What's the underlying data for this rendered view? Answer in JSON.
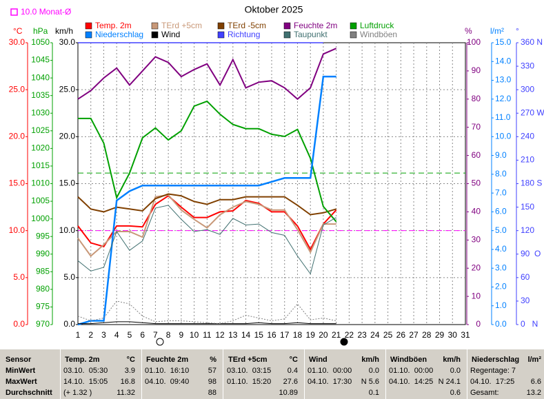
{
  "chart_data": {
    "type": "line",
    "title": "Oktober 2025",
    "x": [
      1,
      2,
      3,
      4,
      5,
      6,
      7,
      8,
      9,
      10,
      11,
      12,
      13,
      14,
      15,
      16,
      17,
      18,
      19,
      20,
      21,
      22,
      23,
      24,
      25,
      26,
      27,
      28,
      29,
      30,
      31
    ],
    "xlim": [
      1,
      31
    ],
    "xgrid": true,
    "grid_axis": 0,
    "axes": [
      {
        "title": "°C",
        "color": "#ff0000",
        "side": "left",
        "lim": [
          0,
          30
        ],
        "ticks": [
          {
            "value": 0,
            "label": "0.0"
          },
          {
            "value": 5,
            "label": "5.0"
          },
          {
            "value": 10,
            "label": "10.0"
          },
          {
            "value": 15,
            "label": "15.0"
          },
          {
            "value": 20,
            "label": "20.0"
          },
          {
            "value": 25,
            "label": "25.0"
          },
          {
            "value": 30,
            "label": "30.0"
          }
        ]
      },
      {
        "title": "hPa",
        "color": "#00a000",
        "side": "left",
        "lim": [
          970,
          1050
        ],
        "ticks": [
          970,
          975,
          980,
          985,
          990,
          995,
          1000,
          1005,
          1010,
          1015,
          1020,
          1025,
          1030,
          1035,
          1040,
          1045,
          1050
        ]
      },
      {
        "title": "km/h",
        "color": "#000000",
        "side": "left",
        "lim": [
          0,
          30
        ],
        "ticks": [
          {
            "value": 0,
            "label": "0.0"
          },
          {
            "value": 5,
            "label": "5.0"
          },
          {
            "value": 10,
            "label": "10.0"
          },
          {
            "value": 15,
            "label": "15.0"
          },
          {
            "value": 20,
            "label": "20.0"
          },
          {
            "value": 25,
            "label": "25.0"
          },
          {
            "value": 30,
            "label": "30.0"
          }
        ]
      },
      {
        "title": "%",
        "color": "#800080",
        "side": "right",
        "lim": [
          0,
          100
        ],
        "ticks": [
          0,
          10,
          20,
          30,
          40,
          50,
          60,
          70,
          80,
          90,
          100
        ]
      },
      {
        "title": "l/m²",
        "color": "#0080ff",
        "side": "right",
        "lim": [
          0,
          15
        ],
        "ticks": [
          {
            "value": 0,
            "label": "0.0"
          },
          {
            "value": 1,
            "label": "1.0"
          },
          {
            "value": 2,
            "label": "2.0"
          },
          {
            "value": 3,
            "label": "3.0"
          },
          {
            "value": 4,
            "label": "4.0"
          },
          {
            "value": 5,
            "label": "5.0"
          },
          {
            "value": 6,
            "label": "6.0"
          },
          {
            "value": 7,
            "label": "7.0"
          },
          {
            "value": 8,
            "label": "8.0"
          },
          {
            "value": 9,
            "label": "9.0"
          },
          {
            "value": 10,
            "label": "10.0"
          },
          {
            "value": 11,
            "label": "11.0"
          },
          {
            "value": 12,
            "label": "12.0"
          },
          {
            "value": 13,
            "label": "13.0"
          },
          {
            "value": 14,
            "label": "14.0"
          },
          {
            "value": 15,
            "label": "15.0"
          }
        ]
      },
      {
        "title": "°",
        "color": "#4040ff",
        "side": "right",
        "lim": [
          0,
          360
        ],
        "ticks": [
          {
            "value": 0,
            "label": "0   N"
          },
          30,
          60,
          {
            "value": 90,
            "label": "90  O"
          },
          120,
          150,
          {
            "value": 180,
            "label": "180 S"
          },
          210,
          240,
          {
            "value": 270,
            "label": "270 W"
          },
          300,
          330,
          {
            "value": 360,
            "label": "360 N"
          }
        ]
      }
    ],
    "reference_lines": [
      {
        "axis": 0,
        "value": 10,
        "color": "#ff00ff",
        "label": "10.0 Monat-Ø"
      },
      {
        "axis": 1,
        "value": 1013,
        "color": "#00a000"
      }
    ],
    "series": [
      {
        "name": "Temp. 2m",
        "color": "#ff0000",
        "axis": 0,
        "width": 2,
        "values": [
          10.5,
          8.7,
          8.3,
          10.5,
          10.5,
          10.4,
          12.8,
          13.7,
          12.5,
          11.4,
          11.4,
          12.0,
          12.1,
          13.2,
          12.9,
          12.0,
          12.0,
          10.5,
          8.0,
          10.7,
          12.2,
          null,
          null,
          null,
          null,
          null,
          null,
          null,
          null,
          null,
          null
        ]
      },
      {
        "name": "TErd +5cm",
        "color": "#c89878",
        "axis": 0,
        "width": 2,
        "values": [
          9.2,
          7.3,
          8.5,
          9.9,
          9.9,
          9.3,
          13.6,
          13.8,
          12.2,
          11.2,
          10.3,
          11.7,
          12.5,
          13.1,
          12.8,
          12.2,
          12.2,
          10.1,
          7.7,
          10.7,
          10.7,
          null,
          null,
          null,
          null,
          null,
          null,
          null,
          null,
          null,
          null
        ]
      },
      {
        "name": "TErd -5cm",
        "color": "#804000",
        "axis": 0,
        "width": 2,
        "values": [
          13.6,
          12.3,
          12.0,
          12.5,
          12.3,
          12.1,
          13.4,
          13.9,
          13.7,
          13.1,
          12.8,
          13.3,
          13.3,
          13.6,
          13.6,
          13.6,
          13.6,
          12.7,
          11.7,
          11.9,
          12.3,
          null,
          null,
          null,
          null,
          null,
          null,
          null,
          null,
          null,
          null
        ]
      },
      {
        "name": "Feuchte 2m",
        "color": "#800080",
        "axis": 3,
        "width": 2,
        "values": [
          80,
          83,
          87.5,
          91,
          85,
          90,
          95,
          93,
          88,
          90.5,
          92.5,
          85,
          94,
          84,
          86,
          86.5,
          84,
          80,
          84,
          96,
          98,
          null,
          null,
          null,
          null,
          null,
          null,
          null,
          null,
          null,
          null
        ]
      },
      {
        "name": "Luftdruck",
        "color": "#00a000",
        "axis": 1,
        "width": 2,
        "values": [
          1028.5,
          1028.5,
          1021.5,
          1006,
          1013,
          1023,
          1025.8,
          1022.4,
          1025,
          1032,
          1033.4,
          1029.7,
          1026.8,
          1025.6,
          1025.6,
          1024,
          1023.4,
          1025.4,
          1017.2,
          1003.5,
          999.2,
          null,
          null,
          null,
          null,
          null,
          null,
          null,
          null,
          null,
          null
        ]
      },
      {
        "name": "Niederschlag",
        "color": "#0080ff",
        "axis": 4,
        "width": 2.5,
        "values": [
          0,
          0.2,
          0.2,
          6.6,
          7.1,
          7.4,
          7.4,
          7.4,
          7.4,
          7.4,
          7.4,
          7.4,
          7.4,
          7.4,
          7.4,
          7.6,
          7.8,
          7.8,
          7.8,
          13.2,
          13.2,
          null,
          null,
          null,
          null,
          null,
          null,
          null,
          null,
          null,
          null
        ]
      },
      {
        "name": "Wind",
        "color": "#000000",
        "axis": 2,
        "width": 1,
        "values": [
          0.1,
          0.1,
          0.2,
          0.3,
          0.3,
          0.2,
          0.1,
          0.1,
          0.1,
          0.1,
          0.1,
          0.1,
          0.1,
          0.1,
          0.2,
          0.1,
          0.1,
          0.2,
          0.1,
          0.1,
          0.1,
          null,
          null,
          null,
          null,
          null,
          null,
          null,
          null,
          null,
          null
        ]
      },
      {
        "name": "Richtung",
        "color": "#4040ff",
        "axis": 5,
        "width": 1.5,
        "values": [
          360,
          360,
          360,
          360,
          360,
          360,
          360,
          360,
          360,
          360,
          360,
          360,
          360,
          360,
          360,
          360,
          360,
          360,
          360,
          360,
          null,
          null,
          null,
          null,
          null,
          null,
          null,
          null,
          null,
          null,
          null
        ]
      },
      {
        "name": "Taupunkt",
        "color": "#407070",
        "axis": 0,
        "width": 1,
        "values": [
          6.8,
          5.7,
          6.1,
          9.9,
          7.9,
          8.9,
          12.4,
          12.7,
          11.2,
          9.9,
          10.1,
          9.6,
          11.3,
          10.6,
          10.7,
          9.8,
          9.5,
          7.3,
          5.4,
          10.6,
          11.4,
          null,
          null,
          null,
          null,
          null,
          null,
          null,
          null,
          null,
          null
        ]
      },
      {
        "name": "Windböen",
        "color": "#808080",
        "axis": 2,
        "width": 1,
        "style": "dotted",
        "values": [
          0.9,
          0.4,
          0.7,
          2.5,
          2.2,
          0.9,
          0.3,
          0.4,
          0.4,
          0.3,
          0.2,
          0.1,
          0.4,
          1.0,
          0.7,
          0.4,
          0.6,
          2.2,
          0.5,
          0.7,
          0.4,
          null,
          null,
          null,
          null,
          null,
          null,
          null,
          null,
          null,
          null
        ]
      }
    ]
  },
  "table": {
    "headers": [
      {
        "name": "Sensor"
      },
      {
        "name": "Temp. 2m",
        "unit": "°C"
      },
      {
        "name": "Feuchte 2m",
        "unit": "%"
      },
      {
        "name": "TErd +5cm",
        "unit": "°C"
      },
      {
        "name": "Wind",
        "unit": "km/h"
      },
      {
        "name": "Windböen",
        "unit": "km/h"
      },
      {
        "name": "Niederschlag",
        "unit": "l/m²"
      }
    ],
    "rows": [
      {
        "label": "MinWert",
        "cells": [
          {
            "when": "03.10.  05:30",
            "value": "3.9"
          },
          {
            "when": "01.10.  16:10",
            "value": "57"
          },
          {
            "when": "03.10.  03:15",
            "value": "0.4"
          },
          {
            "when": "01.10.  00:00",
            "value": "0.0"
          },
          {
            "when": "01.10.  00:00",
            "value": "0.0"
          },
          {
            "when": "Regentage: 7"
          }
        ]
      },
      {
        "label": "MaxWert",
        "cells": [
          {
            "when": "14.10.  15:05",
            "value": "16.8"
          },
          {
            "when": "04.10.  09:40",
            "value": "98"
          },
          {
            "when": "01.10.  15:20",
            "value": "27.6"
          },
          {
            "when": "04.10.  17:30",
            "value": "N 5.6"
          },
          {
            "when": "04.10.  14:25",
            "value": "N 24.1"
          },
          {
            "when": "04.10.  17:25",
            "value": "6.6"
          }
        ]
      },
      {
        "label": "Durchschnitt",
        "cells": [
          {
            "when": "(+ 1.32 )",
            "value": "11.32"
          },
          {
            "value": "88"
          },
          {
            "value": "10.89"
          },
          {
            "value": "0.1"
          },
          {
            "value": "0.6"
          },
          {
            "when": "Gesamt:",
            "value": "13.2"
          }
        ]
      }
    ]
  }
}
